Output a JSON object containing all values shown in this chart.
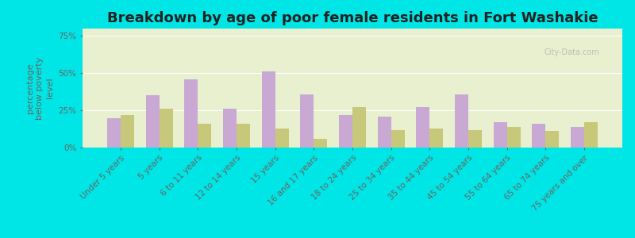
{
  "title": "Breakdown by age of poor female residents in Fort Washakie",
  "ylabel": "percentage\nbelow poverty\nlevel",
  "categories": [
    "Under 5 years",
    "5 years",
    "6 to 11 years",
    "12 to 14 years",
    "15 years",
    "16 and 17 years",
    "18 to 24 years",
    "25 to 34 years",
    "35 to 44 years",
    "45 to 54 years",
    "55 to 64 years",
    "65 to 74 years",
    "75 years and over"
  ],
  "fort_washakie": [
    20,
    35,
    46,
    26,
    51,
    36,
    22,
    21,
    27,
    36,
    17,
    16,
    14
  ],
  "wyoming": [
    22,
    26,
    16,
    16,
    13,
    6,
    27,
    12,
    13,
    12,
    14,
    11,
    17
  ],
  "fort_washakie_color": "#c9a8d4",
  "wyoming_color": "#c8c87a",
  "plot_bg_color": "#e8f0d0",
  "outer_bg": "#00e5e5",
  "ylim": [
    0,
    80
  ],
  "yticks": [
    0,
    25,
    50,
    75
  ],
  "ytick_labels": [
    "0%",
    "25%",
    "50%",
    "75%"
  ],
  "bar_width": 0.35,
  "title_fontsize": 13,
  "axis_label_fontsize": 8,
  "tick_fontsize": 7.5,
  "legend_fontsize": 9,
  "text_color": "#666666"
}
